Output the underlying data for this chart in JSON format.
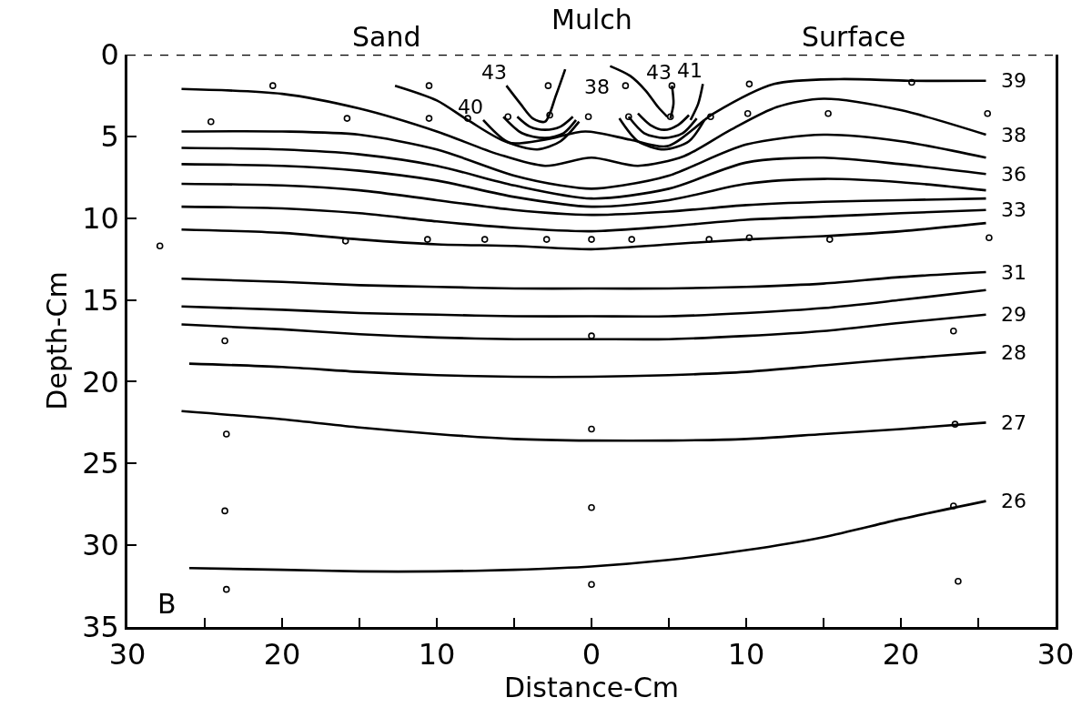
{
  "chart_data": {
    "type": "line",
    "xlabel": "Distance-Cm",
    "ylabel": "Depth-Cm",
    "xlim": [
      -30,
      30
    ],
    "xticks": [
      {
        "value": -30,
        "label": "30"
      },
      {
        "value": -25,
        "label": null
      },
      {
        "value": -20,
        "label": "20"
      },
      {
        "value": -15,
        "label": null
      },
      {
        "value": -10,
        "label": "10"
      },
      {
        "value": -5,
        "label": null
      },
      0,
      {
        "value": 5,
        "label": null
      },
      {
        "value": 10,
        "label": "10"
      },
      {
        "value": 15,
        "label": null
      },
      {
        "value": 20,
        "label": "20"
      },
      {
        "value": 25,
        "label": null
      },
      {
        "value": 30,
        "label": "30"
      }
    ],
    "ylim": [
      35,
      0
    ],
    "yticks": [
      0,
      5,
      10,
      15,
      20,
      25,
      30,
      35
    ],
    "legend": false,
    "line_style": "solid",
    "ref_lines": [
      {
        "axis": "y",
        "value": 0,
        "color": "#000000",
        "line_style": "dashed"
      }
    ],
    "series": [
      {
        "name": "39",
        "color": "#000000",
        "x": [
          -12.7,
          -10,
          -8,
          -5.3,
          -3,
          -0.4,
          2.5,
          4.9,
          7.9,
          11.8,
          16,
          20.5,
          25.5
        ],
        "values": [
          1.9,
          2.8,
          4.0,
          5.4,
          5.2,
          4.7,
          5.2,
          5.6,
          3.6,
          1.8,
          1.5,
          1.6,
          1.6
        ]
      },
      {
        "name": "38",
        "color": "#000000",
        "x": [
          -26.5,
          -20,
          -15,
          -10,
          -6,
          -3,
          0,
          3,
          6,
          9,
          12,
          15,
          20,
          25.5
        ],
        "values": [
          2.1,
          2.4,
          3.3,
          4.7,
          6.1,
          6.8,
          6.3,
          6.8,
          6.2,
          4.6,
          3.2,
          2.7,
          3.4,
          4.9
        ]
      },
      {
        "color": "#000000",
        "x": [
          -26.5,
          -20,
          -15,
          -10,
          -5,
          -2,
          0,
          2,
          5,
          10,
          15,
          20,
          25.5
        ],
        "values": [
          4.7,
          4.7,
          4.9,
          5.8,
          7.4,
          8.0,
          8.2,
          8.0,
          7.4,
          5.5,
          4.9,
          5.3,
          6.3
        ]
      },
      {
        "name": "36",
        "color": "#000000",
        "x": [
          -26.5,
          -20,
          -15,
          -10,
          -5,
          0,
          5,
          10,
          15,
          20,
          25.5
        ],
        "values": [
          5.7,
          5.8,
          6.1,
          6.8,
          8.0,
          8.8,
          8.2,
          6.6,
          6.3,
          6.7,
          7.3
        ]
      },
      {
        "color": "#000000",
        "x": [
          -26.5,
          -20,
          -15,
          -10,
          -5,
          0,
          5,
          10,
          15,
          20,
          25.5
        ],
        "values": [
          6.7,
          6.8,
          7.1,
          7.7,
          8.7,
          9.3,
          8.9,
          7.9,
          7.6,
          7.8,
          8.3
        ]
      },
      {
        "color": "#000000",
        "x": [
          -26.5,
          -20,
          -15,
          -10,
          -5,
          0,
          5,
          10,
          15,
          20,
          25.5
        ],
        "values": [
          7.9,
          8.0,
          8.3,
          8.9,
          9.5,
          9.8,
          9.6,
          9.2,
          9.0,
          8.9,
          8.8
        ]
      },
      {
        "name": "33",
        "color": "#000000",
        "x": [
          -26.5,
          -20,
          -15,
          -10,
          -5,
          0,
          5,
          10,
          15,
          20,
          25.5
        ],
        "values": [
          9.3,
          9.4,
          9.7,
          10.2,
          10.6,
          10.8,
          10.5,
          10.1,
          9.9,
          9.7,
          9.5
        ]
      },
      {
        "color": "#000000",
        "x": [
          -26.5,
          -20,
          -15,
          -10,
          -5,
          0,
          5,
          10,
          15,
          20,
          25.5
        ],
        "values": [
          10.7,
          10.9,
          11.3,
          11.6,
          11.7,
          11.9,
          11.6,
          11.3,
          11.1,
          10.8,
          10.3
        ]
      },
      {
        "name": "31",
        "color": "#000000",
        "x": [
          -26.5,
          -20,
          -15,
          -10,
          -5,
          0,
          5,
          10,
          15,
          20,
          25.5
        ],
        "values": [
          13.7,
          13.9,
          14.1,
          14.2,
          14.3,
          14.3,
          14.3,
          14.2,
          14.0,
          13.6,
          13.3
        ]
      },
      {
        "color": "#000000",
        "x": [
          -26.5,
          -20,
          -15,
          -10,
          -5,
          0,
          5,
          10,
          15,
          20,
          25.5
        ],
        "values": [
          15.4,
          15.6,
          15.8,
          15.9,
          16.0,
          16.0,
          16.0,
          15.8,
          15.5,
          15.0,
          14.4
        ]
      },
      {
        "name": "29",
        "color": "#000000",
        "x": [
          -26.5,
          -20,
          -15,
          -10,
          -5,
          0,
          5,
          10,
          15,
          20,
          25.5
        ],
        "values": [
          16.5,
          16.8,
          17.1,
          17.3,
          17.4,
          17.4,
          17.4,
          17.2,
          16.9,
          16.4,
          15.9
        ]
      },
      {
        "name": "28",
        "color": "#000000",
        "x": [
          -26,
          -20,
          -15,
          -10,
          -5,
          0,
          5,
          10,
          15,
          20,
          25.5
        ],
        "values": [
          18.9,
          19.1,
          19.4,
          19.6,
          19.7,
          19.7,
          19.6,
          19.4,
          19.0,
          18.6,
          18.2
        ]
      },
      {
        "name": "27",
        "color": "#000000",
        "x": [
          -26.5,
          -20,
          -15,
          -10,
          -5,
          0,
          5,
          10,
          15,
          20,
          25.5
        ],
        "values": [
          21.8,
          22.3,
          22.8,
          23.2,
          23.5,
          23.6,
          23.6,
          23.5,
          23.2,
          22.9,
          22.5
        ]
      },
      {
        "name": "26",
        "color": "#000000",
        "x": [
          -26,
          -20,
          -15,
          -10,
          -5,
          0,
          5,
          10,
          15,
          20,
          25.5
        ],
        "values": [
          31.4,
          31.5,
          31.6,
          31.6,
          31.5,
          31.3,
          30.9,
          30.3,
          29.5,
          28.4,
          27.3
        ]
      },
      {
        "name": "43",
        "color": "#000000",
        "x": [
          -5.5,
          -4.6,
          -3.8,
          -3.0,
          -2.3,
          -1.7
        ],
        "values": [
          1.9,
          3.0,
          3.9,
          4.1,
          2.5,
          0.9
        ]
      },
      {
        "color": "#000000",
        "x": [
          -4.8,
          -4.0,
          -3.0,
          -2.0,
          -1.2
        ],
        "values": [
          3.8,
          4.4,
          4.6,
          4.4,
          3.8
        ]
      },
      {
        "color": "#000000",
        "x": [
          -5.7,
          -4.5,
          -3.0,
          -1.8,
          -1.0
        ],
        "values": [
          3.8,
          4.8,
          5.1,
          4.8,
          4.0
        ]
      },
      {
        "name": "40",
        "color": "#000000",
        "x": [
          -7.0,
          -5.5,
          -3.5,
          -2.0,
          -0.8
        ],
        "values": [
          4.0,
          5.3,
          5.8,
          5.3,
          4.1
        ]
      },
      {
        "name": "38",
        "color": "#000000",
        "x": [
          1.2,
          2.5,
          3.5,
          4.3,
          4.9
        ],
        "values": [
          0.7,
          1.3,
          2.2,
          3.2,
          3.8
        ]
      },
      {
        "color": "#000000",
        "x": [
          3.0,
          3.8,
          4.7,
          5.6,
          6.3
        ],
        "values": [
          3.6,
          4.3,
          4.6,
          4.3,
          3.7
        ]
      },
      {
        "color": "#000000",
        "x": [
          2.4,
          3.4,
          4.7,
          5.9,
          6.8
        ],
        "values": [
          3.8,
          4.8,
          5.1,
          4.8,
          3.9
        ]
      },
      {
        "color": "#000000",
        "x": [
          1.8,
          3.0,
          4.7,
          6.3,
          7.3
        ],
        "values": [
          3.9,
          5.3,
          5.8,
          5.3,
          4.0
        ]
      },
      {
        "name": "43",
        "color": "#000000",
        "x": [
          5.2,
          5.3,
          5.1
        ],
        "values": [
          1.9,
          3.0,
          3.9
        ]
      },
      {
        "name": "41",
        "color": "#000000",
        "x": [
          7.2,
          6.9,
          6.4
        ],
        "values": [
          1.8,
          3.0,
          4.0
        ]
      },
      {
        "type": "scatter",
        "color": "#000000",
        "marker": "circle",
        "x": [
          -20.6,
          -10.5,
          -2.8,
          2.2,
          5.2,
          10.2,
          20.7,
          -24.6,
          -15.8,
          -10.5,
          -8.0,
          -5.4,
          -2.7,
          -0.2,
          2.4,
          5.1,
          7.7,
          10.1,
          15.3,
          25.6,
          -27.9,
          -15.9,
          -10.6,
          -6.9,
          -2.9,
          0,
          2.6,
          7.6,
          10.2,
          15.4,
          25.7,
          -23.7,
          0,
          23.4,
          -23.6,
          0,
          23.5,
          -23.7,
          0,
          23.4,
          -23.6,
          0,
          23.7
        ],
        "values": [
          1.9,
          1.9,
          1.9,
          1.9,
          1.9,
          1.8,
          1.7,
          4.1,
          3.9,
          3.9,
          3.9,
          3.8,
          3.7,
          3.8,
          3.8,
          3.8,
          3.8,
          3.6,
          3.6,
          3.6,
          11.7,
          11.4,
          11.3,
          11.3,
          11.3,
          11.3,
          11.3,
          11.3,
          11.2,
          11.3,
          11.2,
          17.5,
          17.2,
          16.9,
          23.2,
          22.9,
          22.6,
          27.9,
          27.7,
          27.6,
          32.7,
          32.4,
          32.2
        ]
      }
    ],
    "annotations": [
      "Sand",
      "Mulch",
      "Surface",
      "B"
    ]
  }
}
